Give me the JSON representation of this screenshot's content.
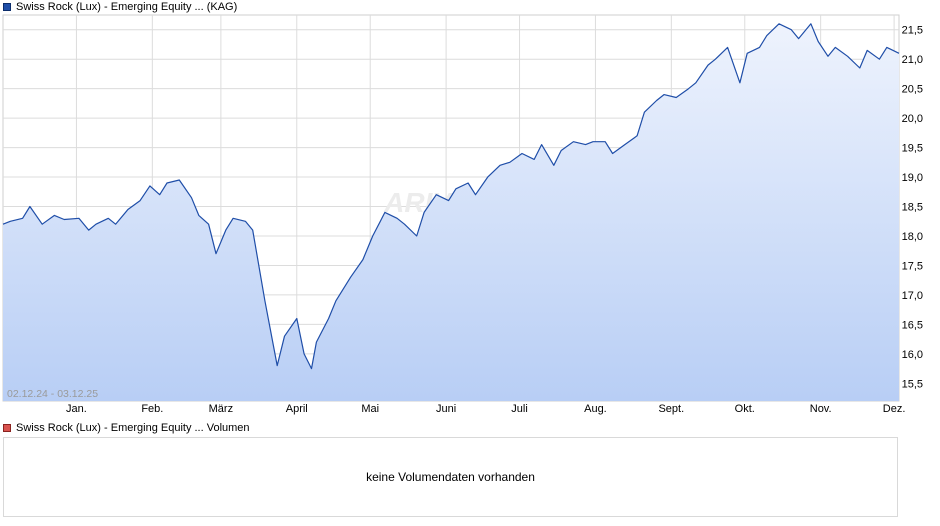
{
  "price_legend": "Swiss Rock (Lux) - Emerging Equity ... (KAG)",
  "volume_legend": "Swiss Rock (Lux) - Emerging Equity ... Volumen",
  "date_range": "02.12.24 - 03.12.25",
  "watermark": "ARIVA.DE",
  "volume_message": "keine Volumendaten vorhanden",
  "colors": {
    "line": "#1f4ea8",
    "fill_top": "#eef3fd",
    "fill_bottom": "#b8cef5",
    "grid": "#dcdcdc"
  },
  "chart_data": {
    "type": "area",
    "x_tick_labels": [
      "Jan.",
      "Feb.",
      "März",
      "April",
      "Mai",
      "Juni",
      "Juli",
      "Aug.",
      "Sept.",
      "Okt.",
      "Nov.",
      "Dez."
    ],
    "y_tick_labels": [
      "15,5",
      "16,0",
      "16,5",
      "17,0",
      "17,5",
      "18,0",
      "18,5",
      "19,0",
      "19,5",
      "20,0",
      "20,5",
      "21,0",
      "21,5"
    ],
    "ylim": [
      15.2,
      21.75
    ],
    "grid": true,
    "series": [
      {
        "x": [
          "2024-12-02",
          "2024-12-05",
          "2024-12-10",
          "2024-12-13",
          "2024-12-18",
          "2024-12-23",
          "2024-12-27",
          "2025-01-02",
          "2025-01-06",
          "2025-01-09",
          "2025-01-14",
          "2025-01-17",
          "2025-01-22",
          "2025-01-27",
          "2025-01-31",
          "2025-02-04",
          "2025-02-07",
          "2025-02-12",
          "2025-02-17",
          "2025-02-20",
          "2025-02-24",
          "2025-02-27",
          "2025-03-03",
          "2025-03-06",
          "2025-03-11",
          "2025-03-14",
          "2025-03-19",
          "2025-03-24",
          "2025-03-27",
          "2025-04-01",
          "2025-04-04",
          "2025-04-07",
          "2025-04-09",
          "2025-04-14",
          "2025-04-17",
          "2025-04-23",
          "2025-04-28",
          "2025-05-02",
          "2025-05-07",
          "2025-05-12",
          "2025-05-15",
          "2025-05-20",
          "2025-05-23",
          "2025-05-28",
          "2025-06-02",
          "2025-06-05",
          "2025-06-10",
          "2025-06-13",
          "2025-06-18",
          "2025-06-23",
          "2025-06-27",
          "2025-07-02",
          "2025-07-07",
          "2025-07-10",
          "2025-07-15",
          "2025-07-18",
          "2025-07-23",
          "2025-07-28",
          "2025-07-31",
          "2025-08-05",
          "2025-08-08",
          "2025-08-13",
          "2025-08-18",
          "2025-08-21",
          "2025-08-26",
          "2025-08-29",
          "2025-09-03",
          "2025-09-08",
          "2025-09-11",
          "2025-09-16",
          "2025-09-19",
          "2025-09-24",
          "2025-09-29",
          "2025-10-02",
          "2025-10-07",
          "2025-10-10",
          "2025-10-15",
          "2025-10-20",
          "2025-10-23",
          "2025-10-28",
          "2025-10-31",
          "2025-11-04",
          "2025-11-07",
          "2025-11-12",
          "2025-11-17",
          "2025-11-20",
          "2025-11-25",
          "2025-11-28",
          "2025-12-03"
        ],
        "y": [
          18.2,
          18.25,
          18.3,
          18.5,
          18.2,
          18.35,
          18.28,
          18.3,
          18.1,
          18.2,
          18.3,
          18.2,
          18.45,
          18.6,
          18.85,
          18.7,
          18.9,
          18.95,
          18.65,
          18.35,
          18.2,
          17.7,
          18.1,
          18.3,
          18.25,
          18.1,
          16.9,
          15.8,
          16.3,
          16.6,
          16.0,
          15.75,
          16.2,
          16.6,
          16.9,
          17.3,
          17.6,
          18.0,
          18.4,
          18.3,
          18.2,
          18.0,
          18.4,
          18.7,
          18.6,
          18.8,
          18.9,
          18.7,
          19.0,
          19.2,
          19.25,
          19.4,
          19.3,
          19.55,
          19.2,
          19.45,
          19.6,
          19.55,
          19.6,
          19.6,
          19.4,
          19.55,
          19.7,
          20.1,
          20.3,
          20.4,
          20.35,
          20.5,
          20.6,
          20.9,
          21.0,
          21.2,
          20.6,
          21.1,
          21.2,
          21.4,
          21.6,
          21.5,
          21.35,
          21.6,
          21.3,
          21.05,
          21.2,
          21.05,
          20.85,
          21.15,
          21.0,
          21.2,
          21.1
        ]
      }
    ]
  }
}
